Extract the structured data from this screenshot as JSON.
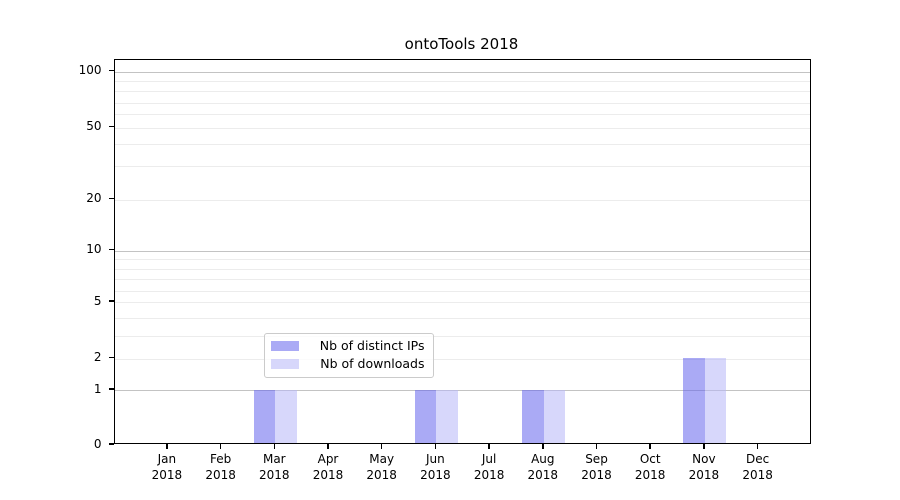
{
  "title": "ontoTools 2018",
  "chart_data": {
    "type": "bar",
    "title": "ontoTools 2018",
    "categories": [
      "Jan",
      "Feb",
      "Mar",
      "Apr",
      "May",
      "Jun",
      "Jul",
      "Aug",
      "Sep",
      "Oct",
      "Nov",
      "Dec"
    ],
    "x_year_line": "2018",
    "series": [
      {
        "name": "Nb of distinct IPs",
        "color": "#6565ed",
        "alpha": 0.55,
        "values": [
          0,
          0,
          1,
          0,
          0,
          1,
          0,
          1,
          0,
          0,
          2,
          0
        ]
      },
      {
        "name": "Nb of downloads",
        "color": "#b7b7f7",
        "alpha": 0.55,
        "values": [
          0,
          0,
          1,
          0,
          0,
          1,
          0,
          1,
          0,
          0,
          2,
          0
        ]
      }
    ],
    "y_tick_labels": [
      "0",
      "1",
      "2",
      "5",
      "10",
      "20",
      "50",
      "100"
    ],
    "ylim": [
      0,
      100
    ],
    "yscale": "log-like with 0 baseline",
    "grid": "on",
    "legend_position": "lower center inside plot"
  },
  "legend": {
    "items": [
      {
        "label": "Nb of distinct IPs",
        "color": "#6565ed"
      },
      {
        "label": "Nb of downloads",
        "color": "#b7b7f7"
      }
    ]
  },
  "colors": {
    "grid_major": "#c3c3c3",
    "grid_minor": "#ececec",
    "spine": "#000000",
    "background": "#ffffff"
  }
}
